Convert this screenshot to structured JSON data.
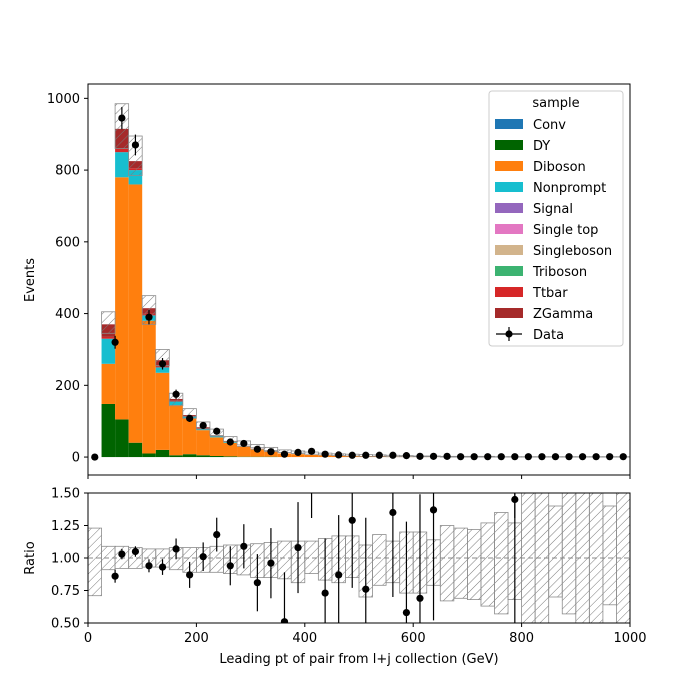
{
  "chart_data": [
    {
      "type": "bar",
      "stacked": true,
      "panel": "main",
      "ylabel": "Events",
      "xlabel": "",
      "xlim": [
        0,
        1000
      ],
      "ylim": [
        -50,
        1040
      ],
      "xticks": [
        0,
        200,
        400,
        600,
        800,
        1000
      ],
      "yticks": [
        0,
        200,
        400,
        600,
        800,
        1000
      ],
      "bin_edges": [
        0,
        25,
        50,
        75,
        100,
        125,
        150,
        175,
        200,
        225,
        250,
        275,
        300,
        325,
        350,
        375,
        400,
        425,
        450,
        475,
        500,
        525,
        550,
        575,
        600,
        625,
        650,
        675,
        700,
        725,
        750,
        775,
        800,
        825,
        850,
        875,
        900,
        925,
        950,
        975,
        1000
      ],
      "series": [
        {
          "name": "Conv",
          "color": "#1f77b4",
          "values": [
            0,
            0,
            0,
            0,
            0,
            0,
            0,
            0,
            0,
            0,
            0,
            0,
            0,
            0,
            0,
            0,
            0,
            0,
            0,
            0,
            0,
            0,
            0,
            0,
            0,
            0,
            0,
            0,
            0,
            0,
            0,
            0,
            0,
            0,
            0,
            0,
            0,
            0,
            0,
            0
          ]
        },
        {
          "name": "DY",
          "color": "#006400",
          "values": [
            0,
            148,
            105,
            40,
            10,
            20,
            5,
            8,
            5,
            3,
            2,
            1,
            1,
            1,
            0,
            0,
            0,
            0,
            0,
            0,
            0,
            0,
            0,
            0,
            0,
            0,
            0,
            0,
            0,
            0,
            0,
            0,
            0,
            0,
            0,
            0,
            0,
            0,
            0,
            0
          ]
        },
        {
          "name": "Diboson",
          "color": "#ff7f0e",
          "values": [
            0,
            112,
            675,
            720,
            370,
            215,
            140,
            100,
            70,
            52,
            38,
            28,
            20,
            14,
            10,
            8,
            6,
            5,
            4,
            3,
            3,
            2,
            2,
            2,
            1,
            1,
            1,
            1,
            1,
            1,
            0,
            0,
            0,
            0,
            0,
            0,
            0,
            0,
            0,
            0
          ]
        },
        {
          "name": "Nonprompt",
          "color": "#17becf",
          "values": [
            0,
            70,
            70,
            40,
            15,
            15,
            10,
            5,
            4,
            3,
            2,
            1,
            1,
            1,
            0,
            0,
            0,
            0,
            0,
            0,
            0,
            0,
            0,
            0,
            0,
            0,
            0,
            0,
            0,
            0,
            0,
            0,
            0,
            0,
            0,
            0,
            0,
            0,
            0,
            0
          ]
        },
        {
          "name": "Signal",
          "color": "#9467bd",
          "values": [
            0,
            0,
            0,
            0,
            0,
            0,
            0,
            0,
            0,
            0,
            0,
            0,
            0,
            0,
            0,
            0,
            0,
            0,
            0,
            0,
            0,
            0,
            0,
            0,
            0,
            0,
            0,
            0,
            0,
            0,
            0,
            0,
            0,
            0,
            0,
            0,
            0,
            0,
            0,
            0
          ]
        },
        {
          "name": "Single top",
          "color": "#e377c2",
          "values": [
            0,
            0,
            0,
            0,
            0,
            0,
            0,
            0,
            0,
            0,
            0,
            0,
            0,
            0,
            0,
            0,
            0,
            0,
            0,
            0,
            0,
            0,
            0,
            0,
            0,
            0,
            0,
            0,
            0,
            0,
            0,
            0,
            0,
            0,
            0,
            0,
            0,
            0,
            0,
            0
          ]
        },
        {
          "name": "Singleboson",
          "color": "#d2b48c",
          "values": [
            0,
            0,
            0,
            0,
            0,
            0,
            0,
            0,
            0,
            0,
            0,
            0,
            0,
            0,
            0,
            0,
            0,
            0,
            0,
            0,
            0,
            0,
            0,
            0,
            0,
            0,
            0,
            0,
            0,
            0,
            0,
            0,
            0,
            0,
            0,
            0,
            0,
            0,
            0,
            0
          ]
        },
        {
          "name": "Triboson",
          "color": "#3cb371",
          "values": [
            0,
            0,
            0,
            0,
            0,
            0,
            0,
            0,
            0,
            0,
            0,
            0,
            0,
            0,
            0,
            0,
            0,
            0,
            0,
            0,
            0,
            0,
            0,
            0,
            0,
            0,
            0,
            0,
            0,
            0,
            0,
            0,
            0,
            0,
            0,
            0,
            0,
            0,
            0,
            0
          ]
        },
        {
          "name": "Ttbar",
          "color": "#d62728",
          "values": [
            0,
            5,
            10,
            5,
            5,
            2,
            2,
            1,
            1,
            0,
            0,
            0,
            0,
            0,
            0,
            0,
            0,
            0,
            0,
            0,
            0,
            0,
            0,
            0,
            0,
            0,
            0,
            0,
            0,
            0,
            0,
            0,
            0,
            0,
            0,
            0,
            0,
            0,
            0,
            0
          ]
        },
        {
          "name": "ZGamma",
          "color": "#a52a2a",
          "values": [
            0,
            35,
            55,
            20,
            15,
            18,
            5,
            3,
            3,
            2,
            1,
            1,
            1,
            1,
            0,
            0,
            0,
            0,
            0,
            0,
            0,
            0,
            0,
            0,
            0,
            0,
            0,
            0,
            0,
            0,
            0,
            0,
            0,
            0,
            0,
            0,
            0,
            0,
            0,
            0
          ]
        }
      ],
      "uncertainty_band": {
        "up": [
          0,
          405,
          985,
          895,
          450,
          300,
          178,
          135,
          98,
          78,
          57,
          45,
          35,
          27,
          20,
          17,
          14,
          11,
          9,
          8,
          7,
          6,
          5,
          4,
          3,
          3,
          2,
          2,
          2,
          2,
          1,
          1,
          1,
          1,
          1,
          1,
          1,
          1,
          1,
          1
        ],
        "down": [
          0,
          345,
          860,
          785,
          370,
          255,
          143,
          108,
          78,
          60,
          44,
          34,
          26,
          18,
          13,
          10,
          8,
          6,
          4,
          3,
          2,
          2,
          1,
          1,
          1,
          1,
          0,
          0,
          0,
          0,
          0,
          0,
          0,
          0,
          0,
          0,
          0,
          0,
          0,
          0
        ]
      },
      "data_points": {
        "name": "Data",
        "x": [
          12.5,
          50,
          62.5,
          87.5,
          112.5,
          137.5,
          162.5,
          187.5,
          212.5,
          237.5,
          262.5,
          287.5,
          312.5,
          337.5,
          362.5,
          387.5,
          412.5,
          437.5,
          462.5,
          487.5,
          512.5,
          537.5,
          562.5,
          587.5,
          612.5,
          637.5,
          662.5,
          687.5,
          712.5,
          737.5,
          762.5,
          787.5,
          812.5,
          837.5,
          862.5,
          887.5,
          912.5,
          937.5,
          962.5,
          987.5
        ],
        "y": [
          0,
          320,
          945,
          870,
          390,
          260,
          175,
          108,
          88,
          72,
          42,
          38,
          22,
          15,
          8,
          13,
          16,
          8,
          6,
          5,
          5,
          5,
          5,
          4,
          2,
          2,
          2,
          1,
          1,
          1,
          1,
          1,
          1,
          1,
          1,
          1,
          1,
          1,
          1,
          1
        ],
        "yerr": [
          1,
          18,
          31,
          29,
          20,
          16,
          13,
          10,
          9,
          8,
          6,
          6,
          5,
          4,
          3,
          4,
          4,
          3,
          2,
          2,
          2,
          2,
          2,
          2,
          1,
          1,
          1,
          1,
          1,
          1,
          1,
          1,
          1,
          1,
          1,
          1,
          1,
          1,
          1,
          1
        ]
      },
      "legend": {
        "title": "sample",
        "placement": "top-right"
      }
    },
    {
      "type": "scatter",
      "panel": "ratio",
      "ylabel": "Ratio",
      "xlabel": "Leading pt of pair from l+j collection (GeV)",
      "xlim": [
        0,
        1000
      ],
      "ylim": [
        0.5,
        1.5
      ],
      "xticks": [
        0,
        200,
        400,
        600,
        800,
        1000
      ],
      "yticks": [
        0.5,
        0.75,
        1.0,
        1.25,
        1.5
      ],
      "ytick_labels": [
        "0.50",
        "0.75",
        "1.00",
        "1.25",
        "1.50"
      ],
      "reference_line": 1.0,
      "band": {
        "up": [
          1.23,
          1.09,
          1.09,
          1.08,
          1.07,
          1.07,
          1.08,
          1.08,
          1.08,
          1.09,
          1.1,
          1.1,
          1.11,
          1.12,
          1.13,
          1.13,
          1.13,
          1.15,
          1.17,
          1.17,
          1.1,
          1.18,
          1.13,
          1.2,
          1.2,
          1.14,
          1.25,
          1.23,
          1.22,
          1.27,
          1.35,
          1.27,
          1.62,
          1.5,
          1.4,
          1.52,
          1.52,
          1.5,
          1.4,
          1.5
        ],
        "down": [
          0.71,
          0.91,
          0.92,
          0.92,
          0.93,
          0.93,
          0.91,
          0.89,
          0.89,
          0.89,
          0.88,
          0.87,
          0.85,
          0.85,
          0.84,
          0.81,
          0.88,
          0.83,
          0.81,
          0.85,
          0.7,
          0.79,
          0.81,
          0.73,
          0.73,
          0.79,
          0.67,
          0.69,
          0.68,
          0.63,
          0.57,
          0.68,
          0.5,
          0.5,
          0.7,
          0.57,
          0.5,
          0.5,
          0.64,
          0.5
        ]
      },
      "points": {
        "x": [
          50,
          62.5,
          87.5,
          112.5,
          137.5,
          162.5,
          187.5,
          212.5,
          237.5,
          262.5,
          287.5,
          312.5,
          337.5,
          362.5,
          387.5,
          437.5,
          462.5,
          487.5,
          512.5,
          562.5,
          587.5,
          612.5,
          637.5,
          787.5
        ],
        "y": [
          0.86,
          1.03,
          1.05,
          0.94,
          0.93,
          1.07,
          0.87,
          1.01,
          1.18,
          0.94,
          1.09,
          0.81,
          0.96,
          0.51,
          1.08,
          0.73,
          0.87,
          1.29,
          0.76,
          1.35,
          0.58,
          0.69,
          1.37,
          1.45
        ],
        "yerr": [
          0.05,
          0.04,
          0.04,
          0.05,
          0.06,
          0.08,
          0.1,
          0.11,
          0.13,
          0.15,
          0.17,
          0.22,
          0.27,
          0.38,
          0.35,
          0.42,
          0.46,
          0.52,
          0.55,
          0.65,
          0.7,
          0.8,
          0.85,
          1.2
        ]
      },
      "extra_error_bars_x": [
        412.5,
        787.5
      ]
    }
  ]
}
